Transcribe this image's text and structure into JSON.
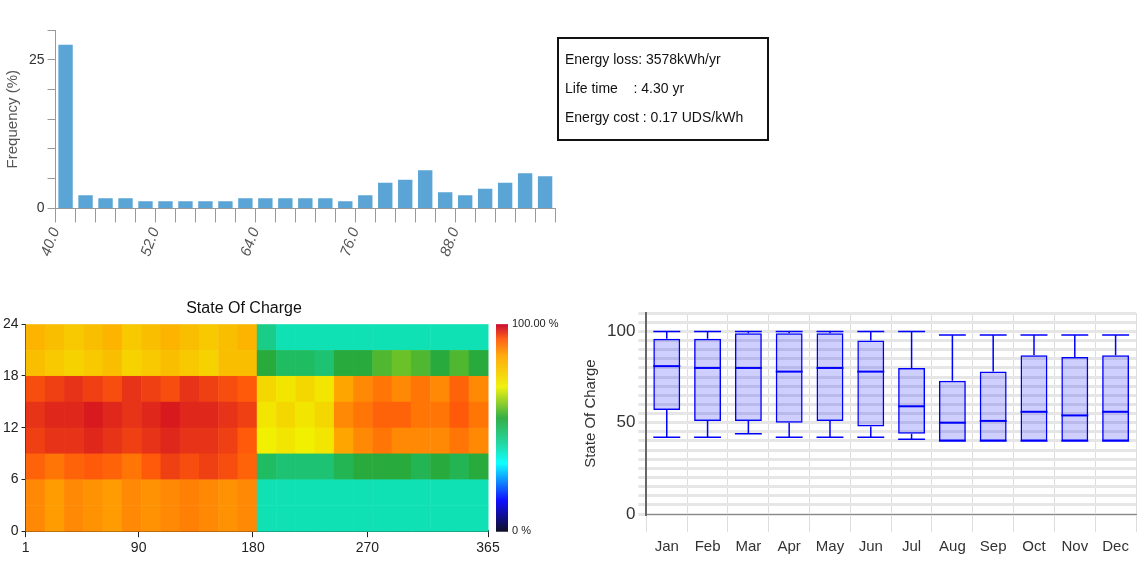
{
  "chart_data": [
    {
      "type": "histogram",
      "ylabel": "Frequency (%)",
      "color": "#5aa5d6",
      "bins": [
        40,
        42.4,
        44.8,
        47.2,
        49.6,
        52,
        54.4,
        56.8,
        59.2,
        61.6,
        64,
        66.4,
        68.8,
        71.2,
        73.6,
        76,
        78.4,
        80.8,
        83.2,
        85.6,
        88,
        90.4,
        92.8,
        95.2,
        97.6,
        100
      ],
      "values": [
        27.5,
        2.2,
        1.7,
        1.7,
        1.2,
        1.2,
        1.2,
        1.2,
        1.2,
        1.7,
        1.7,
        1.7,
        1.7,
        1.7,
        1.2,
        2.2,
        4.3,
        4.8,
        6.4,
        2.7,
        2.2,
        3.3,
        4.3,
        5.9,
        5.4
      ],
      "xlim": [
        40,
        100
      ],
      "xticks": [
        {
          "value": 40,
          "label": "40.0"
        },
        {
          "value": 42.4,
          "label": null
        },
        {
          "value": 44.8,
          "label": null
        },
        {
          "value": 47.2,
          "label": null
        },
        {
          "value": 49.6,
          "label": null
        },
        {
          "value": 52,
          "label": "52.0"
        },
        {
          "value": 54.4,
          "label": null
        },
        {
          "value": 56.8,
          "label": null
        },
        {
          "value": 59.2,
          "label": null
        },
        {
          "value": 61.6,
          "label": null
        },
        {
          "value": 64,
          "label": "64.0"
        },
        {
          "value": 66.4,
          "label": null
        },
        {
          "value": 68.8,
          "label": null
        },
        {
          "value": 71.2,
          "label": null
        },
        {
          "value": 73.6,
          "label": null
        },
        {
          "value": 76,
          "label": "76.0"
        },
        {
          "value": 78.4,
          "label": null
        },
        {
          "value": 80.8,
          "label": null
        },
        {
          "value": 83.2,
          "label": null
        },
        {
          "value": 85.6,
          "label": null
        },
        {
          "value": 88,
          "label": "88.0"
        },
        {
          "value": 90.4,
          "label": null
        },
        {
          "value": 92.8,
          "label": null
        },
        {
          "value": 95.2,
          "label": null
        },
        {
          "value": 97.6,
          "label": null
        },
        {
          "value": 100,
          "label": null
        }
      ],
      "ylim": [
        0,
        30
      ],
      "yticks": [
        0,
        {
          "value": 5,
          "label": null
        },
        {
          "value": 10,
          "label": null
        },
        {
          "value": 15,
          "label": null
        },
        {
          "value": 20,
          "label": null
        },
        25,
        {
          "value": 30,
          "label": null
        }
      ],
      "grid": false
    },
    {
      "type": "other",
      "annotations": [
        "Energy loss: 3578kWh/yr",
        "Life time    : 4.30 yr",
        "Energy cost : 0.17 UDS/kWh"
      ]
    },
    {
      "type": "heatmap",
      "title": "State Of Charge",
      "x": [
        8.6,
        23.8,
        38.9,
        54.1,
        69.3,
        84.4,
        99.6,
        114.8,
        129.9,
        145.1,
        160.3,
        175.4,
        190.6,
        205.8,
        220.9,
        236.1,
        251.3,
        266.4,
        281.6,
        296.8,
        311.9,
        327.1,
        342.3,
        357.4
      ],
      "xlim": [
        1,
        365
      ],
      "xticks": [
        1,
        90,
        180,
        270,
        365
      ],
      "ylim": [
        0,
        24
      ],
      "yticks": [
        0,
        6,
        12,
        18,
        24
      ],
      "clim": [
        0,
        100
      ],
      "cticks": [
        {
          "value": 0,
          "label": "0 %"
        },
        {
          "value": 100,
          "label": "100.00 %"
        }
      ],
      "cells": [
        [
          82,
          80,
          78,
          80,
          82,
          78,
          80,
          82,
          80,
          78,
          80,
          82,
          45,
          40,
          40,
          40,
          40,
          40,
          40,
          40,
          40,
          40,
          40,
          40
        ],
        [
          80,
          78,
          76,
          78,
          80,
          76,
          78,
          80,
          78,
          76,
          80,
          80,
          55,
          50,
          50,
          48,
          55,
          55,
          58,
          60,
          58,
          55,
          58,
          55
        ],
        [
          94,
          95,
          96,
          95,
          94,
          96,
          95,
          94,
          96,
          95,
          94,
          93,
          75,
          72,
          75,
          72,
          85,
          88,
          90,
          88,
          90,
          88,
          92,
          88
        ],
        [
          96,
          97,
          97,
          98,
          97,
          96,
          97,
          98,
          97,
          97,
          96,
          95,
          72,
          75,
          72,
          75,
          88,
          90,
          92,
          92,
          90,
          90,
          93,
          90
        ],
        [
          95,
          96,
          96,
          97,
          96,
          95,
          96,
          97,
          96,
          96,
          95,
          93,
          70,
          72,
          70,
          72,
          85,
          88,
          90,
          88,
          88,
          88,
          90,
          88
        ],
        [
          92,
          90,
          92,
          93,
          92,
          90,
          93,
          95,
          94,
          95,
          94,
          92,
          50,
          48,
          48,
          48,
          52,
          55,
          55,
          55,
          52,
          55,
          52,
          55
        ],
        [
          88,
          86,
          88,
          87,
          86,
          88,
          87,
          88,
          89,
          88,
          87,
          88,
          40,
          40,
          40,
          40,
          40,
          40,
          40,
          40,
          40,
          40,
          40,
          40
        ],
        [
          88,
          86,
          88,
          87,
          86,
          88,
          87,
          88,
          89,
          88,
          87,
          88,
          40,
          40,
          40,
          40,
          40,
          40,
          40,
          40,
          40,
          40,
          40,
          40
        ]
      ],
      "grid": false
    },
    {
      "type": "box",
      "ylabel": "State Of Charge",
      "color": "#0000ff",
      "categories": [
        "Jan",
        "Feb",
        "Mar",
        "Apr",
        "May",
        "Jun",
        "Jul",
        "Aug",
        "Sep",
        "Oct",
        "Nov",
        "Dec"
      ],
      "boxes": [
        {
          "low": 42,
          "q1": 57,
          "median": 81,
          "q3": 96,
          "high": 100
        },
        {
          "low": 42,
          "q1": 51,
          "median": 80,
          "q3": 96,
          "high": 100
        },
        {
          "low": 44,
          "q1": 51,
          "median": 80,
          "q3": 99,
          "high": 100
        },
        {
          "low": 42,
          "q1": 50,
          "median": 78,
          "q3": 99,
          "high": 100
        },
        {
          "low": 42,
          "q1": 51,
          "median": 80,
          "q3": 99,
          "high": 100
        },
        {
          "low": 42,
          "q1": 48,
          "median": 78,
          "q3": 95,
          "high": 100
        },
        {
          "low": 41,
          "q1": 44,
          "median": 59,
          "q3": 80,
          "high": 100
        },
        {
          "low": 40,
          "q1": 40,
          "median": 50,
          "q3": 73,
          "high": 98
        },
        {
          "low": 40,
          "q1": 40,
          "median": 51,
          "q3": 78,
          "high": 98
        },
        {
          "low": 40,
          "q1": 40,
          "median": 56,
          "q3": 87,
          "high": 98
        },
        {
          "low": 40,
          "q1": 40,
          "median": 54,
          "q3": 86,
          "high": 98
        },
        {
          "low": 40,
          "q1": 40,
          "median": 56,
          "q3": 87,
          "high": 98
        }
      ],
      "ylim": [
        0,
        110
      ],
      "yticks": [
        0,
        {
          "value": 5,
          "label": null
        },
        {
          "value": 10,
          "label": null
        },
        {
          "value": 15,
          "label": null
        },
        {
          "value": 20,
          "label": null
        },
        {
          "value": 25,
          "label": null
        },
        {
          "value": 30,
          "label": null
        },
        {
          "value": 35,
          "label": null
        },
        {
          "value": 40,
          "label": null
        },
        {
          "value": 45,
          "label": null
        },
        50,
        {
          "value": 55,
          "label": null
        },
        {
          "value": 60,
          "label": null
        },
        {
          "value": 65,
          "label": null
        },
        {
          "value": 70,
          "label": null
        },
        {
          "value": 75,
          "label": null
        },
        {
          "value": 80,
          "label": null
        },
        {
          "value": 85,
          "label": null
        },
        {
          "value": 90,
          "label": null
        },
        {
          "value": 95,
          "label": null
        },
        100,
        {
          "value": 105,
          "label": null
        },
        {
          "value": 110,
          "label": null
        }
      ],
      "grid": true
    }
  ]
}
